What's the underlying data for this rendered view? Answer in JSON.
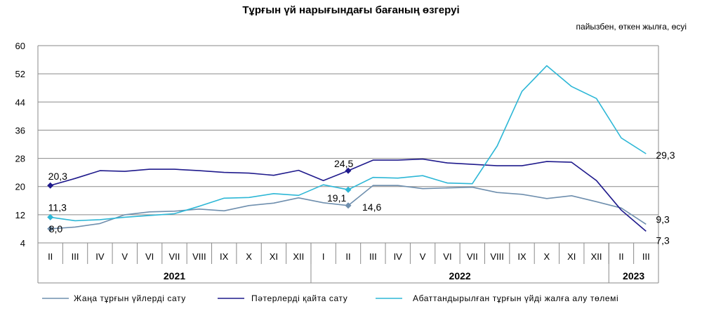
{
  "chart_data": {
    "type": "line",
    "title": "Тұрғын үй нарығындағы бағаның өзгеруі",
    "units": "пайызбен, өткен жылға, өсуі",
    "ylim": [
      4,
      60
    ],
    "yticks": [
      4,
      12,
      20,
      28,
      36,
      44,
      52,
      60
    ],
    "grid": true,
    "legend_position": "bottom",
    "categories": [
      "II",
      "III",
      "IV",
      "V",
      "VI",
      "VII",
      "VIII",
      "IX",
      "X",
      "XI",
      "XII",
      "I",
      "II",
      "III",
      "IV",
      "V",
      "VI",
      "VII",
      "VIII",
      "IX",
      "X",
      "XI",
      "XII",
      "II",
      "III"
    ],
    "years": [
      {
        "label": "2021",
        "start": 0,
        "end": 10
      },
      {
        "label": "2022",
        "start": 11,
        "end": 22
      },
      {
        "label": "2023",
        "start": 23,
        "end": 24
      }
    ],
    "series": [
      {
        "name": "Жаңа тұрғын үйлерді сату",
        "color": "#6f8fae",
        "values": [
          8.0,
          8.5,
          9.5,
          12.0,
          12.8,
          13.0,
          13.6,
          13.1,
          14.6,
          15.3,
          16.8,
          15.4,
          14.6,
          20.3,
          20.3,
          19.4,
          19.6,
          19.8,
          18.3,
          17.8,
          16.6,
          17.4,
          15.7,
          13.9,
          9.3
        ]
      },
      {
        "name": "Пәтерлерді қайта сату",
        "color": "#1f1a8c",
        "values": [
          20.3,
          22.3,
          24.5,
          24.3,
          24.9,
          24.9,
          24.5,
          24.0,
          23.8,
          23.2,
          24.6,
          21.7,
          24.5,
          27.5,
          27.5,
          27.8,
          26.7,
          26.3,
          25.9,
          25.9,
          27.1,
          26.9,
          21.7,
          13.3,
          7.3
        ]
      },
      {
        "name": "Абаттандырылған  тұрғын  үйді жалға алу төлемі",
        "color": "#2db7d6",
        "values": [
          11.3,
          10.3,
          10.6,
          11.3,
          11.8,
          12.3,
          14.4,
          16.7,
          16.9,
          18.0,
          17.5,
          20.5,
          19.1,
          22.6,
          22.4,
          23.1,
          21.0,
          20.8,
          31.5,
          47.0,
          54.3,
          48.4,
          45.0,
          33.8,
          29.3
        ]
      }
    ],
    "markers": [
      {
        "series": 0,
        "index": 0
      },
      {
        "series": 0,
        "index": 12
      },
      {
        "series": 1,
        "index": 0
      },
      {
        "series": 1,
        "index": 12
      },
      {
        "series": 2,
        "index": 0
      },
      {
        "series": 2,
        "index": 12
      }
    ],
    "data_labels": [
      {
        "series": 0,
        "index": 0,
        "text": "8,0"
      },
      {
        "series": 0,
        "index": 12,
        "text": "14,6"
      },
      {
        "series": 0,
        "index": 24,
        "text": "9,3"
      },
      {
        "series": 1,
        "index": 0,
        "text": "20,3"
      },
      {
        "series": 1,
        "index": 12,
        "text": "24,5"
      },
      {
        "series": 1,
        "index": 24,
        "text": "7,3"
      },
      {
        "series": 2,
        "index": 0,
        "text": "11,3"
      },
      {
        "series": 2,
        "index": 12,
        "text": "19,1"
      },
      {
        "series": 2,
        "index": 24,
        "text": "29,3"
      }
    ]
  }
}
